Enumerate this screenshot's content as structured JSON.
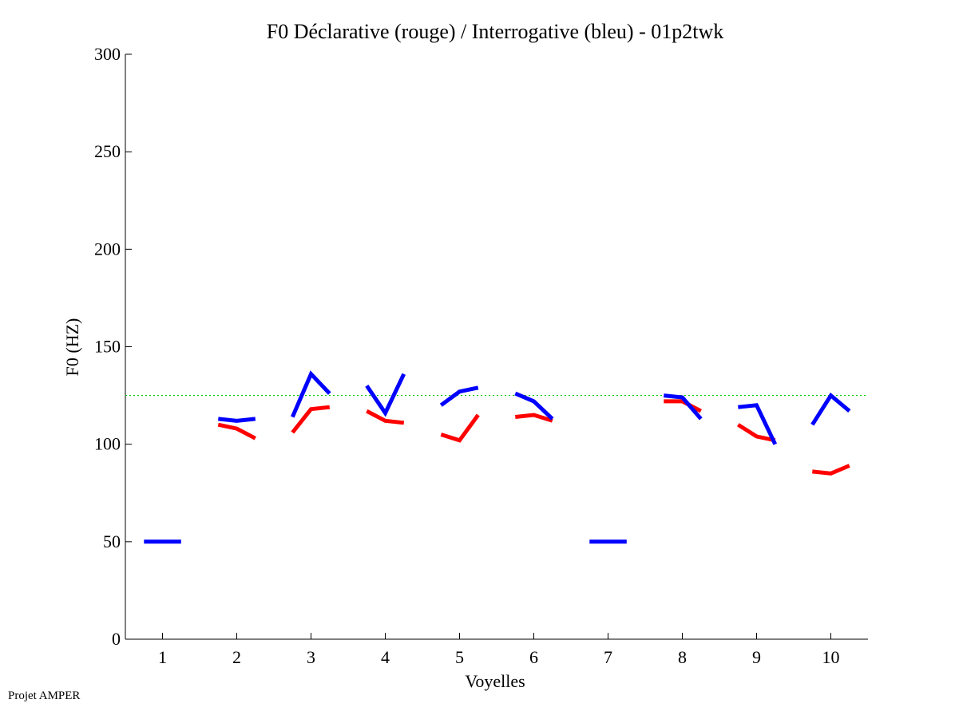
{
  "footer": {
    "credit": "Projet AMPER"
  },
  "chart_data": {
    "type": "line",
    "title": "F0 Déclarative (rouge) / Interrogative (bleu) - 01p2twk",
    "xlabel": "Voyelles",
    "ylabel": "F0 (HZ)",
    "xlim": [
      0.5,
      10.5
    ],
    "ylim": [
      0,
      300
    ],
    "xticks": [
      1,
      2,
      3,
      4,
      5,
      6,
      7,
      8,
      9,
      10
    ],
    "yticks": [
      0,
      50,
      100,
      150,
      200,
      250,
      300
    ],
    "grid": false,
    "reference_line": {
      "y": 125,
      "color": "#00cc00",
      "style": "dotted"
    },
    "series": [
      {
        "color": "#ff0000",
        "segments": [
          {
            "vowel": 2,
            "points": [
              [
                1.75,
                110
              ],
              [
                2.0,
                108
              ],
              [
                2.25,
                103
              ]
            ]
          },
          {
            "vowel": 3,
            "points": [
              [
                2.75,
                106
              ],
              [
                3.0,
                118
              ],
              [
                3.25,
                119
              ]
            ]
          },
          {
            "vowel": 4,
            "points": [
              [
                3.75,
                117
              ],
              [
                4.0,
                112
              ],
              [
                4.25,
                111
              ]
            ]
          },
          {
            "vowel": 5,
            "points": [
              [
                4.75,
                105
              ],
              [
                5.0,
                102
              ],
              [
                5.25,
                115
              ]
            ]
          },
          {
            "vowel": 6,
            "points": [
              [
                5.75,
                114
              ],
              [
                6.0,
                115
              ],
              [
                6.25,
                112
              ]
            ]
          },
          {
            "vowel": 8,
            "points": [
              [
                7.75,
                122
              ],
              [
                8.0,
                122
              ],
              [
                8.25,
                117
              ]
            ]
          },
          {
            "vowel": 9,
            "points": [
              [
                8.75,
                110
              ],
              [
                9.0,
                104
              ],
              [
                9.25,
                102
              ]
            ]
          },
          {
            "vowel": 10,
            "points": [
              [
                9.75,
                86
              ],
              [
                10.0,
                85
              ],
              [
                10.25,
                89
              ]
            ]
          }
        ]
      },
      {
        "color": "#0000ff",
        "segments": [
          {
            "vowel": 1,
            "points": [
              [
                0.75,
                50
              ],
              [
                1.0,
                50
              ],
              [
                1.25,
                50
              ]
            ]
          },
          {
            "vowel": 2,
            "points": [
              [
                1.75,
                113
              ],
              [
                2.0,
                112
              ],
              [
                2.25,
                113
              ]
            ]
          },
          {
            "vowel": 3,
            "points": [
              [
                2.75,
                114
              ],
              [
                3.0,
                136
              ],
              [
                3.25,
                126
              ]
            ]
          },
          {
            "vowel": 4,
            "points": [
              [
                3.75,
                130
              ],
              [
                4.0,
                116
              ],
              [
                4.25,
                136
              ]
            ]
          },
          {
            "vowel": 5,
            "points": [
              [
                4.75,
                120
              ],
              [
                5.0,
                127
              ],
              [
                5.25,
                129
              ]
            ]
          },
          {
            "vowel": 6,
            "points": [
              [
                5.75,
                126
              ],
              [
                6.0,
                122
              ],
              [
                6.25,
                113
              ]
            ]
          },
          {
            "vowel": 7,
            "points": [
              [
                6.75,
                50
              ],
              [
                7.0,
                50
              ],
              [
                7.25,
                50
              ]
            ]
          },
          {
            "vowel": 8,
            "points": [
              [
                7.75,
                125
              ],
              [
                8.0,
                124
              ],
              [
                8.25,
                113
              ]
            ]
          },
          {
            "vowel": 9,
            "points": [
              [
                8.75,
                119
              ],
              [
                9.0,
                120
              ],
              [
                9.25,
                100
              ]
            ]
          },
          {
            "vowel": 10,
            "points": [
              [
                9.75,
                110
              ],
              [
                10.0,
                125
              ],
              [
                10.25,
                117
              ]
            ]
          }
        ]
      }
    ]
  }
}
